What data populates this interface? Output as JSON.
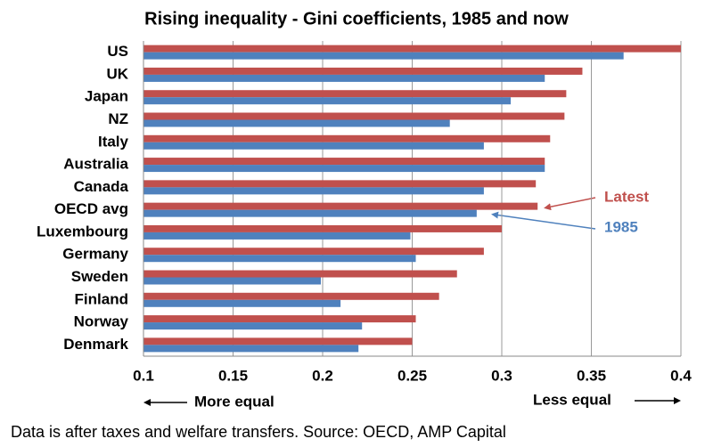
{
  "chart_data": {
    "type": "bar",
    "orientation": "horizontal",
    "title": "Rising inequality - Gini coefficients, 1985 and now",
    "categories": [
      "US",
      "UK",
      "Japan",
      "NZ",
      "Italy",
      "Australia",
      "Canada",
      "OECD avg",
      "Luxembourg",
      "Germany",
      "Sweden",
      "Finland",
      "Norway",
      "Denmark"
    ],
    "series": [
      {
        "name": "Latest",
        "color": "#c0504d",
        "values": [
          0.4,
          0.345,
          0.336,
          0.335,
          0.327,
          0.324,
          0.319,
          0.32,
          0.3,
          0.29,
          0.275,
          0.265,
          0.252,
          0.25
        ]
      },
      {
        "name": "1985",
        "color": "#4f81bd",
        "values": [
          0.368,
          0.324,
          0.305,
          0.271,
          0.29,
          0.324,
          0.29,
          0.286,
          0.249,
          0.252,
          0.199,
          0.21,
          0.222,
          0.22
        ]
      }
    ],
    "xlim": [
      0.1,
      0.4
    ],
    "xticks": [
      0.1,
      0.15,
      0.2,
      0.25,
      0.3,
      0.35,
      0.4
    ],
    "grid": true,
    "left_note": "More equal",
    "right_note": "Less equal",
    "footnote": "Data is after taxes and welfare transfers. Source: OECD, AMP Capital"
  }
}
